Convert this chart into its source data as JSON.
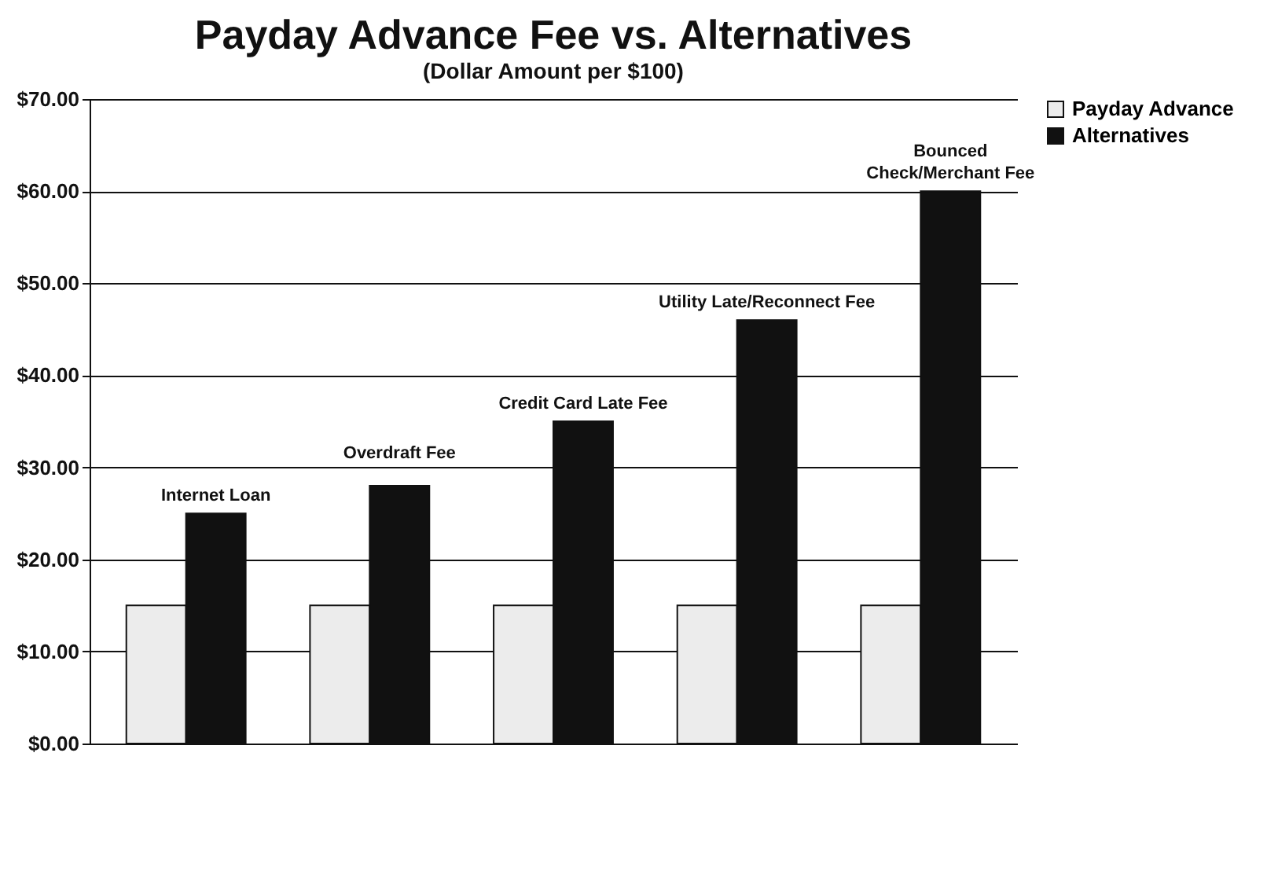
{
  "chart_data": {
    "type": "bar",
    "title": "Payday Advance Fee vs. Alternatives",
    "subtitle": "(Dollar Amount per $100)",
    "categories": [
      "Internet Loan",
      "Overdraft Fee",
      "Credit Card Late Fee",
      "Utility Late/Reconnect Fee",
      "Bounced Check/Merchant Fee"
    ],
    "series": [
      {
        "name": "Payday Advance",
        "color": "#ececec",
        "values": [
          15,
          15,
          15,
          15,
          15
        ]
      },
      {
        "name": "Alternatives",
        "color": "#111111",
        "values": [
          25,
          28,
          35,
          46,
          60
        ]
      }
    ],
    "ylim": [
      0,
      70
    ],
    "yticks": [
      {
        "value": 0,
        "label": "$0.00"
      },
      {
        "value": 10,
        "label": "$10.00"
      },
      {
        "value": 20,
        "label": "$20.00"
      },
      {
        "value": 30,
        "label": "$30.00"
      },
      {
        "value": 40,
        "label": "$40.00"
      },
      {
        "value": 50,
        "label": "$50.00"
      },
      {
        "value": 60,
        "label": "$60.00"
      },
      {
        "value": 70,
        "label": "$70.00"
      }
    ],
    "grid": "y",
    "legend": "right"
  }
}
